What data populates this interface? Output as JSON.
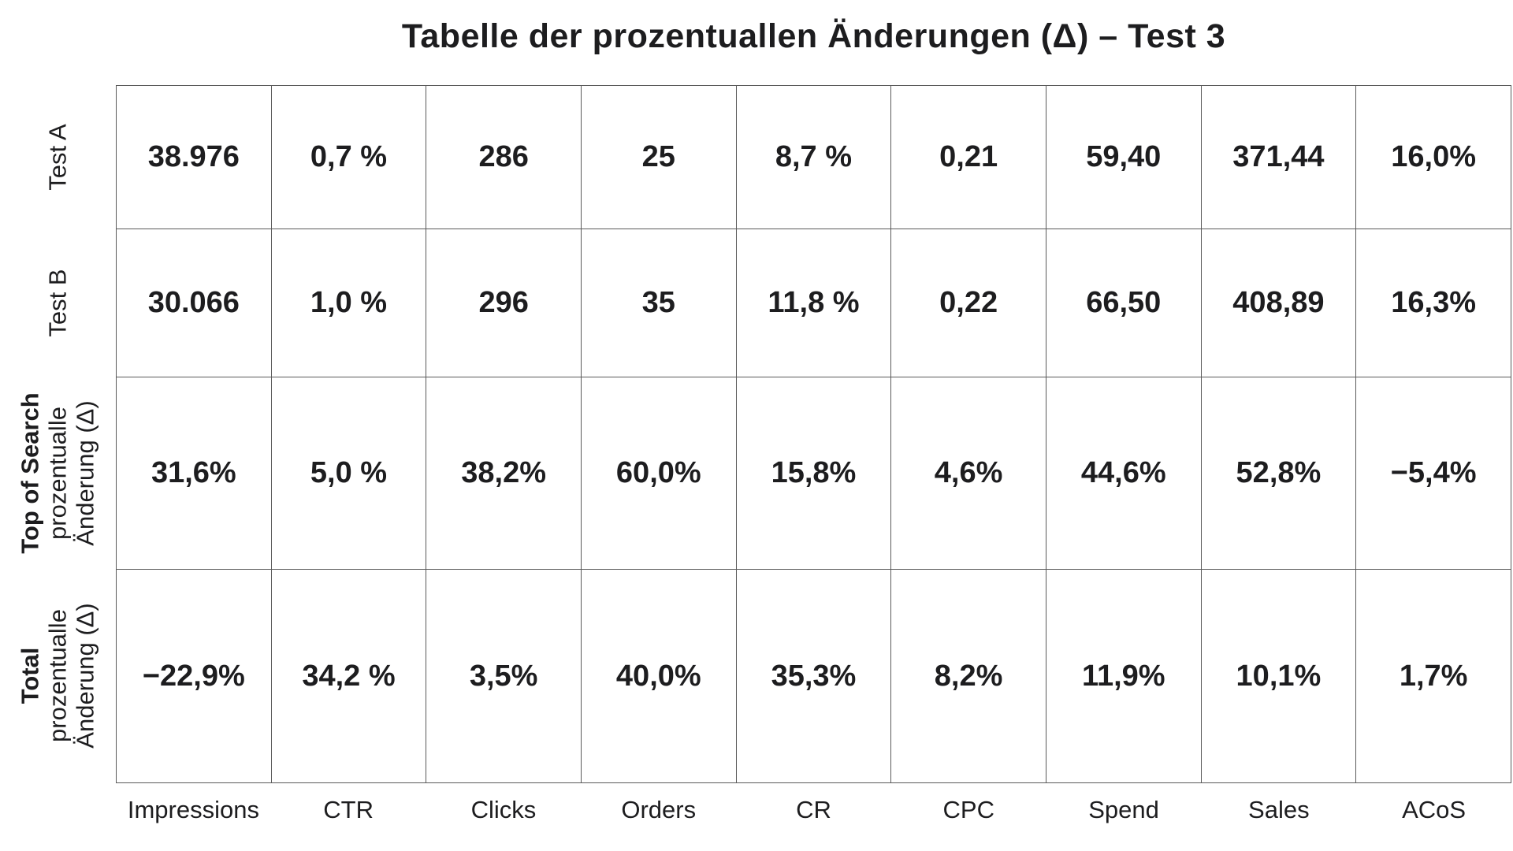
{
  "colors": {
    "green": "#20A561",
    "red": "#DB4441",
    "black": "#1D1D1F",
    "grid": "#5A5A5A"
  },
  "chart_data": {
    "type": "table",
    "title": "Tabelle der prozentuallen Änderungen (Δ) – Test 3",
    "columns": [
      "Impressions",
      "CTR",
      "Clicks",
      "Orders",
      "CR",
      "CPC",
      "Spend",
      "Sales",
      "ACoS"
    ],
    "rows": [
      {
        "label": "Test A",
        "values": [
          "38.976",
          "0,7 %",
          "286",
          "25",
          "8,7 %",
          "0,21",
          "59,40",
          "371,44",
          "16,0%"
        ]
      },
      {
        "label": "Test B",
        "values": [
          "30.066",
          "1,0 %",
          "296",
          "35",
          "11,8 %",
          "0,22",
          "66,50",
          "408,89",
          "16,3%"
        ]
      },
      {
        "label_bold": "Top of Search",
        "label_line2": "prozentualle",
        "label_line3": "Änderung (Δ)",
        "values": [
          "31,6%",
          "5,0 %",
          "38,2%",
          "60,0%",
          "15,8%",
          "4,6%",
          "44,6%",
          "52,8%",
          "−5,4%"
        ],
        "tones": [
          "green",
          "green",
          "green",
          "green",
          "green",
          "red",
          "red",
          "green",
          "green"
        ]
      },
      {
        "label_bold": "Total",
        "label_line2": "prozentualle",
        "label_line3": "Änderung (Δ)",
        "values": [
          "−22,9%",
          "34,2 %",
          "3,5%",
          "40,0%",
          "35,3%",
          "8,2%",
          "11,9%",
          "10,1%",
          "1,7%"
        ],
        "tones": [
          "red",
          "green",
          "green",
          "green",
          "green",
          "red",
          "red",
          "green",
          "red"
        ]
      }
    ]
  }
}
